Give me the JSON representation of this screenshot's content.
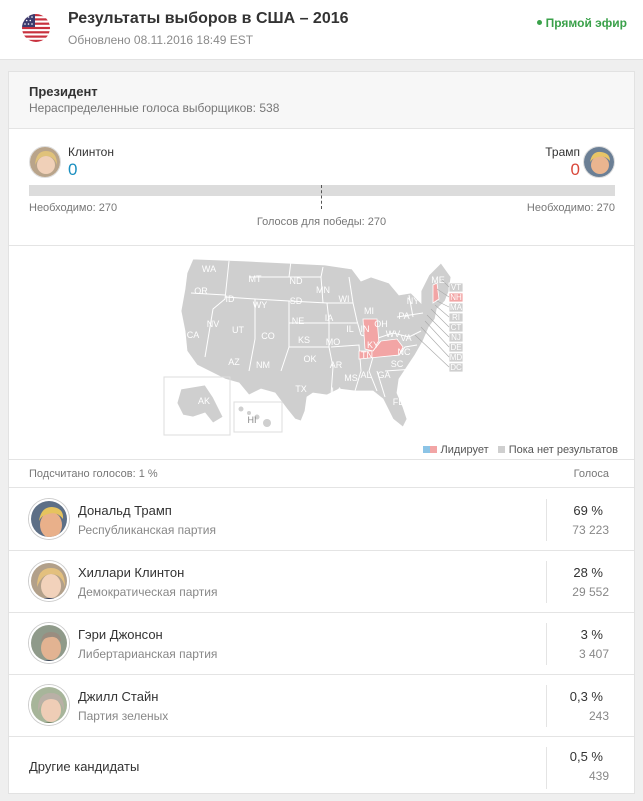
{
  "header": {
    "title": "Результаты выборов в США – 2016",
    "updated": "Обновлено 08.11.2016 18:49 EST",
    "live_label": "Прямой эфир"
  },
  "president": {
    "title": "Президент",
    "unallocated": "Нераспределенные голоса выборщиков: 538"
  },
  "tally": {
    "left_name": "Клинтон",
    "left_count": "0",
    "right_name": "Трамп",
    "right_count": "0",
    "left_needed": "Необходимо: 270",
    "right_needed": "Необходимо: 270",
    "to_win": "Голосов для победы: 270"
  },
  "map": {
    "labels": {
      "WA": "WA",
      "OR": "OR",
      "CA": "CA",
      "ID": "ID",
      "NV": "NV",
      "MT": "MT",
      "WY": "WY",
      "UT": "UT",
      "AZ": "AZ",
      "CO": "CO",
      "NM": "NM",
      "ND": "ND",
      "SD": "SD",
      "NE": "NE",
      "KS": "KS",
      "OK": "OK",
      "TX": "TX",
      "MN": "MN",
      "IA": "IA",
      "MO": "MO",
      "AR": "AR",
      "LA": "LA",
      "WI": "WI",
      "IL": "IL",
      "MI": "MI",
      "IN": "IN",
      "KY": "KY",
      "TN": "TN",
      "MS": "MS",
      "AL": "AL",
      "GA": "GA",
      "FL": "FL",
      "OH": "OH",
      "WV": "WV",
      "VA": "VA",
      "NC": "NC",
      "SC": "SC",
      "PA": "PA",
      "NY": "NY",
      "ME": "ME",
      "AK": "AK",
      "HI": "HI",
      "VT": "VT",
      "NH": "NH",
      "MA": "MA",
      "RI": "RI",
      "CT": "CT",
      "NJ": "NJ",
      "DE": "DE",
      "MD": "MD",
      "DC": "DC"
    },
    "leading_states": [
      "IN",
      "KY",
      "VT",
      "NH"
    ],
    "leading_color_clinton": "#8cc4e6",
    "leading_color_trump": "#f2a5a5",
    "no_result_color": "#cfcfcf",
    "legend_leading": "Лидирует",
    "legend_no_results": "Пока нет результатов"
  },
  "list": {
    "counted": "Подсчитано голосов: 1 %",
    "votes_header": "Голоса",
    "candidates": [
      {
        "name": "Дональд Трамп",
        "party": "Республиканская партия",
        "pct": "69 %",
        "votes": "73 223"
      },
      {
        "name": "Хиллари Клинтон",
        "party": "Демократическая партия",
        "pct": "28 %",
        "votes": "29 552"
      },
      {
        "name": "Гэри Джонсон",
        "party": "Либертарианская партия",
        "pct": "3 %",
        "votes": "3 407"
      },
      {
        "name": "Джилл Стайн",
        "party": "Партия зеленых",
        "pct": "0,3 %",
        "votes": "243"
      }
    ],
    "others": {
      "name": "Другие кандидаты",
      "pct": "0,5 %",
      "votes": "439"
    }
  },
  "colors": {
    "clinton": "#1a8fc0",
    "trump": "#d9483b",
    "live": "#3aa14a"
  }
}
